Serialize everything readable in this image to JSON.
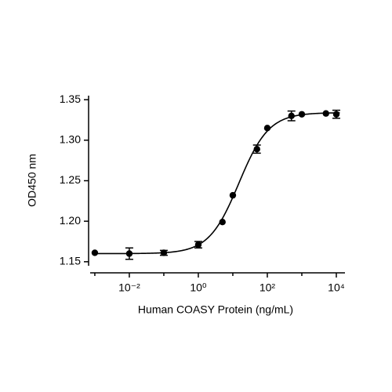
{
  "chart_data": {
    "type": "scatter",
    "x_label": "Human COASY Protein (ng/mL)",
    "y_label": "OD450 nm",
    "x_scale": "log",
    "xlim": [
      0.00066,
      17800
    ],
    "ylim": [
      1.145,
      1.355
    ],
    "xticks": [
      {
        "value": 0.01,
        "label": "10⁻²"
      },
      {
        "value": 1,
        "label": "10⁰"
      },
      {
        "value": 100,
        "label": "10²"
      },
      {
        "value": 10000,
        "label": "10⁴"
      }
    ],
    "xminorticks": [
      0.001,
      0.1,
      10,
      1000
    ],
    "yticks": [
      1.15,
      {
        "value": 1.2,
        "label": "1.20"
      },
      1.25,
      {
        "value": 1.3,
        "label": "1.30"
      },
      1.35
    ],
    "series": [
      {
        "color": "#000000",
        "x": [
          0.001,
          0.01,
          0.1,
          1,
          5,
          10,
          50,
          100,
          500,
          1000,
          5000,
          10000
        ],
        "values": [
          1.161,
          1.16,
          1.161,
          1.171,
          1.199,
          1.232,
          1.289,
          1.315,
          1.33,
          1.332,
          1.333,
          1.332
        ],
        "errors": [
          null,
          0.007,
          0.003,
          0.004,
          null,
          null,
          0.005,
          null,
          0.006,
          null,
          null,
          0.005
        ]
      }
    ],
    "fit": {
      "bottom": 1.16,
      "top": 1.334,
      "ec50": 15,
      "hill": 1
    }
  }
}
